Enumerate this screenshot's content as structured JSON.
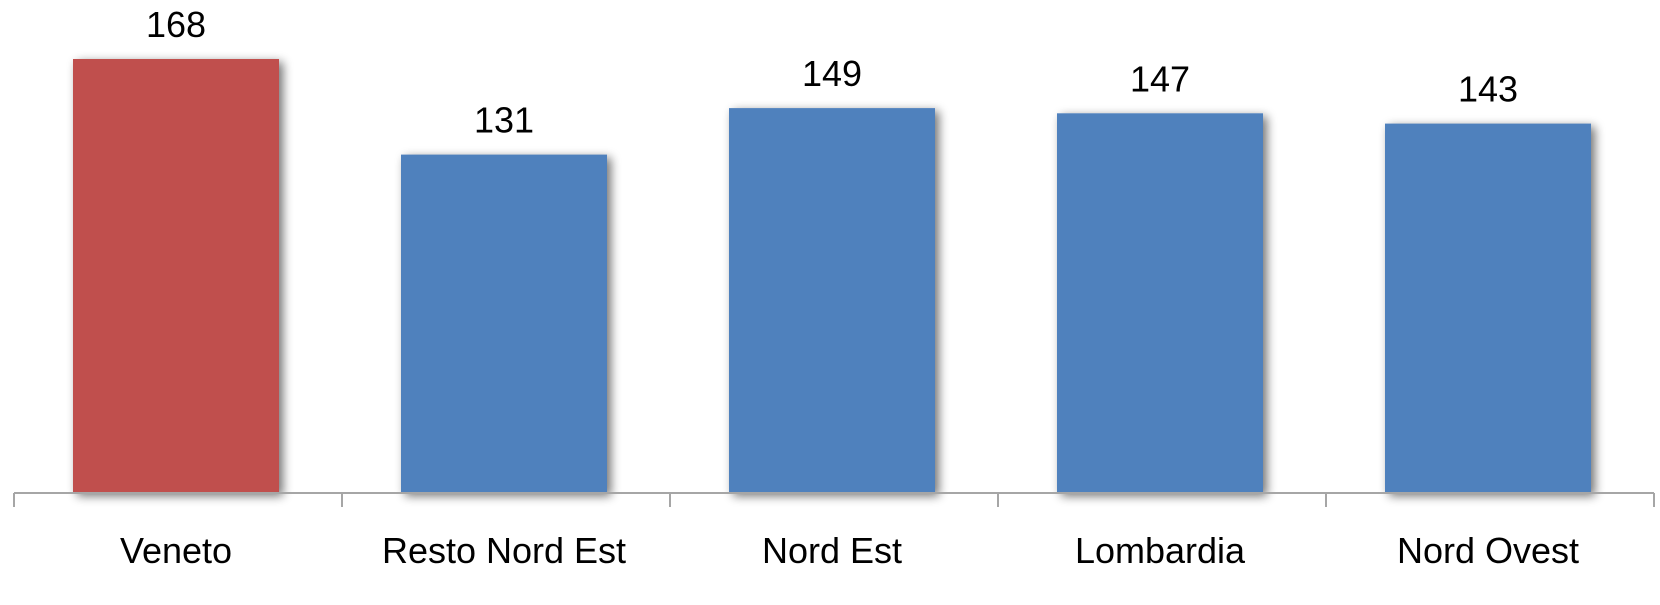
{
  "chart_data": {
    "type": "bar",
    "title": "",
    "xlabel": "",
    "ylabel": "",
    "categories": [
      "Veneto",
      "Resto Nord Est",
      "Nord Est",
      "Lombardia",
      "Nord Ovest"
    ],
    "values": [
      168,
      131,
      149,
      147,
      143
    ],
    "data_labels": [
      "168",
      "131",
      "149",
      "147",
      "143"
    ],
    "ylim": [
      0,
      180
    ],
    "grid": false,
    "legend": "none",
    "colors": {
      "highlight": "#C0504D",
      "default": "#4F81BD",
      "axis": "#A6A6A6"
    },
    "highlight_index": 0
  }
}
